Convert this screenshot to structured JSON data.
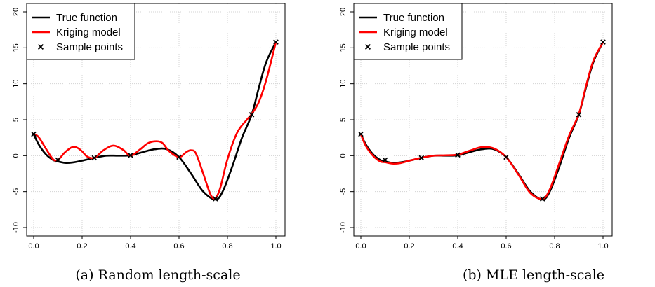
{
  "chart_data": [
    {
      "type": "line",
      "caption": "(a) Random length-scale",
      "xlim": [
        0,
        1
      ],
      "ylim": [
        -10,
        20
      ],
      "xticks": [
        "0.0",
        "0.2",
        "0.4",
        "0.6",
        "0.8",
        "1.0"
      ],
      "yticks": [
        "-10",
        "-5",
        "0",
        "5",
        "10",
        "15",
        "20"
      ],
      "grid": true,
      "legend_position": "top-left",
      "series": [
        {
          "name": "True function",
          "color": "#000000",
          "x": [
            0.0,
            0.02,
            0.05,
            0.08,
            0.1,
            0.13,
            0.16,
            0.2,
            0.25,
            0.3,
            0.35,
            0.4,
            0.45,
            0.5,
            0.55,
            0.6,
            0.65,
            0.7,
            0.75,
            0.78,
            0.82,
            0.86,
            0.9,
            0.93,
            0.96,
            1.0
          ],
          "y": [
            3.0,
            1.6,
            0.2,
            -0.6,
            -0.8,
            -1.0,
            -0.95,
            -0.7,
            -0.3,
            0.0,
            0.0,
            0.05,
            0.5,
            0.9,
            0.9,
            -0.2,
            -2.5,
            -5.0,
            -6.1,
            -5.0,
            -1.5,
            2.5,
            5.7,
            9.5,
            13.0,
            15.8
          ]
        },
        {
          "name": "Kriging model",
          "color": "#ff0000",
          "x": [
            0.0,
            0.02,
            0.05,
            0.08,
            0.1,
            0.13,
            0.16,
            0.18,
            0.2,
            0.22,
            0.25,
            0.29,
            0.33,
            0.37,
            0.4,
            0.44,
            0.47,
            0.5,
            0.53,
            0.56,
            0.6,
            0.63,
            0.65,
            0.67,
            0.7,
            0.73,
            0.75,
            0.77,
            0.8,
            0.84,
            0.88,
            0.9,
            0.93,
            0.96,
            1.0
          ],
          "y": [
            3.0,
            2.6,
            1.0,
            -0.5,
            -0.6,
            0.5,
            1.2,
            1.1,
            0.6,
            -0.1,
            -0.3,
            0.8,
            1.4,
            0.8,
            0.0,
            0.9,
            1.7,
            2.0,
            1.8,
            0.6,
            -0.2,
            0.5,
            0.75,
            0.3,
            -2.5,
            -5.4,
            -5.9,
            -4.5,
            -0.5,
            3.2,
            5.0,
            5.8,
            7.5,
            10.5,
            15.8
          ]
        }
      ],
      "points": {
        "name": "Sample points",
        "x": [
          0.0,
          0.1,
          0.25,
          0.4,
          0.6,
          0.75,
          0.9,
          1.0
        ],
        "y": [
          3.0,
          -0.6,
          -0.3,
          0.05,
          -0.2,
          -6.0,
          5.7,
          15.8
        ]
      }
    },
    {
      "type": "line",
      "caption": "(b) MLE length-scale",
      "xlim": [
        0,
        1
      ],
      "ylim": [
        -10,
        20
      ],
      "xticks": [
        "0.0",
        "0.2",
        "0.4",
        "0.6",
        "0.8",
        "1.0"
      ],
      "yticks": [
        "-10",
        "-5",
        "0",
        "5",
        "10",
        "15",
        "20"
      ],
      "grid": true,
      "legend_position": "top-left",
      "series": [
        {
          "name": "True function",
          "color": "#000000",
          "x": [
            0.0,
            0.02,
            0.05,
            0.08,
            0.1,
            0.13,
            0.16,
            0.2,
            0.25,
            0.3,
            0.35,
            0.4,
            0.45,
            0.5,
            0.55,
            0.6,
            0.65,
            0.7,
            0.75,
            0.78,
            0.82,
            0.86,
            0.9,
            0.93,
            0.96,
            1.0
          ],
          "y": [
            3.0,
            1.6,
            0.2,
            -0.6,
            -0.8,
            -1.0,
            -0.95,
            -0.7,
            -0.3,
            0.0,
            0.0,
            0.05,
            0.5,
            0.9,
            0.9,
            -0.2,
            -2.5,
            -5.0,
            -6.1,
            -5.0,
            -1.5,
            2.5,
            5.7,
            9.5,
            13.0,
            15.8
          ]
        },
        {
          "name": "Kriging model",
          "color": "#ff0000",
          "x": [
            0.0,
            0.02,
            0.05,
            0.08,
            0.1,
            0.13,
            0.16,
            0.2,
            0.25,
            0.3,
            0.35,
            0.4,
            0.45,
            0.5,
            0.55,
            0.6,
            0.65,
            0.7,
            0.75,
            0.78,
            0.82,
            0.86,
            0.9,
            0.93,
            0.96,
            1.0
          ],
          "y": [
            3.0,
            1.4,
            0.0,
            -0.8,
            -0.9,
            -1.1,
            -1.05,
            -0.7,
            -0.3,
            0.0,
            0.05,
            0.15,
            0.7,
            1.2,
            1.0,
            -0.2,
            -2.6,
            -5.2,
            -6.0,
            -4.7,
            -1.0,
            2.8,
            5.8,
            9.7,
            13.2,
            15.8
          ]
        }
      ],
      "points": {
        "name": "Sample points",
        "x": [
          0.0,
          0.1,
          0.25,
          0.4,
          0.6,
          0.75,
          0.9,
          1.0
        ],
        "y": [
          3.0,
          -0.6,
          -0.3,
          0.1,
          -0.2,
          -6.0,
          5.7,
          15.8
        ]
      }
    }
  ]
}
